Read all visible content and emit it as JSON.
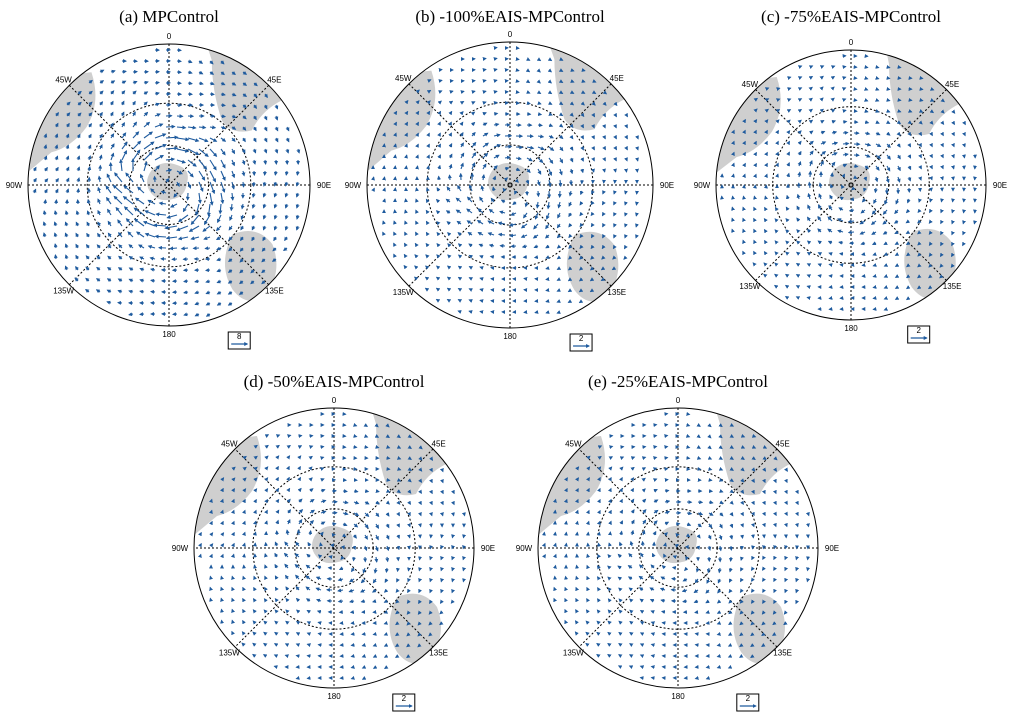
{
  "panels": [
    {
      "title": "(a) MPControl",
      "reference_vector": "8"
    },
    {
      "title": "(b) -100%EAIS-MPControl",
      "reference_vector": "2"
    },
    {
      "title": "(c) -75%EAIS-MPControl",
      "reference_vector": "2"
    },
    {
      "title": "(d) -50%EAIS-MPControl",
      "reference_vector": "2"
    },
    {
      "title": "(e) -25%EAIS-MPControl",
      "reference_vector": "2"
    }
  ],
  "longitude_labels": [
    "0",
    "45E",
    "90E",
    "135E",
    "180",
    "135W",
    "90W",
    "45W"
  ]
}
